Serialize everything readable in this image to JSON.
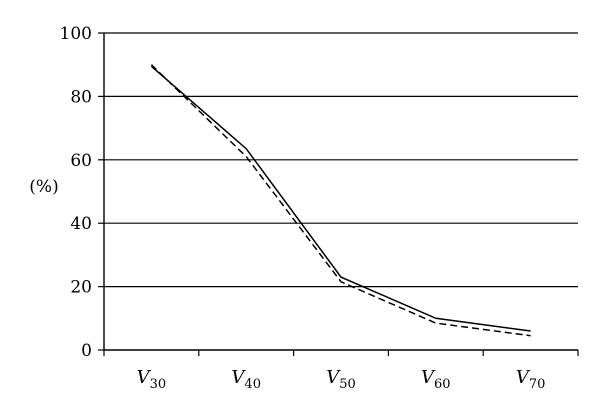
{
  "chart_data": {
    "type": "line",
    "categories": [
      {
        "main": "V",
        "sub": "30"
      },
      {
        "main": "V",
        "sub": "40"
      },
      {
        "main": "V",
        "sub": "50"
      },
      {
        "main": "V",
        "sub": "60"
      },
      {
        "main": "V",
        "sub": "70"
      }
    ],
    "series": [
      {
        "values": [
          89.5,
          63.5,
          23,
          10,
          6
        ],
        "style": "solid",
        "color": "#000000"
      },
      {
        "values": [
          90,
          61,
          21.5,
          8.5,
          4.5
        ],
        "style": "dashed",
        "color": "#000000"
      }
    ],
    "ylabel": "(%)",
    "ylim": [
      0,
      100
    ],
    "yticks": [
      0,
      20,
      40,
      60,
      80,
      100
    ],
    "grid": "horizontal",
    "legend": "none"
  }
}
